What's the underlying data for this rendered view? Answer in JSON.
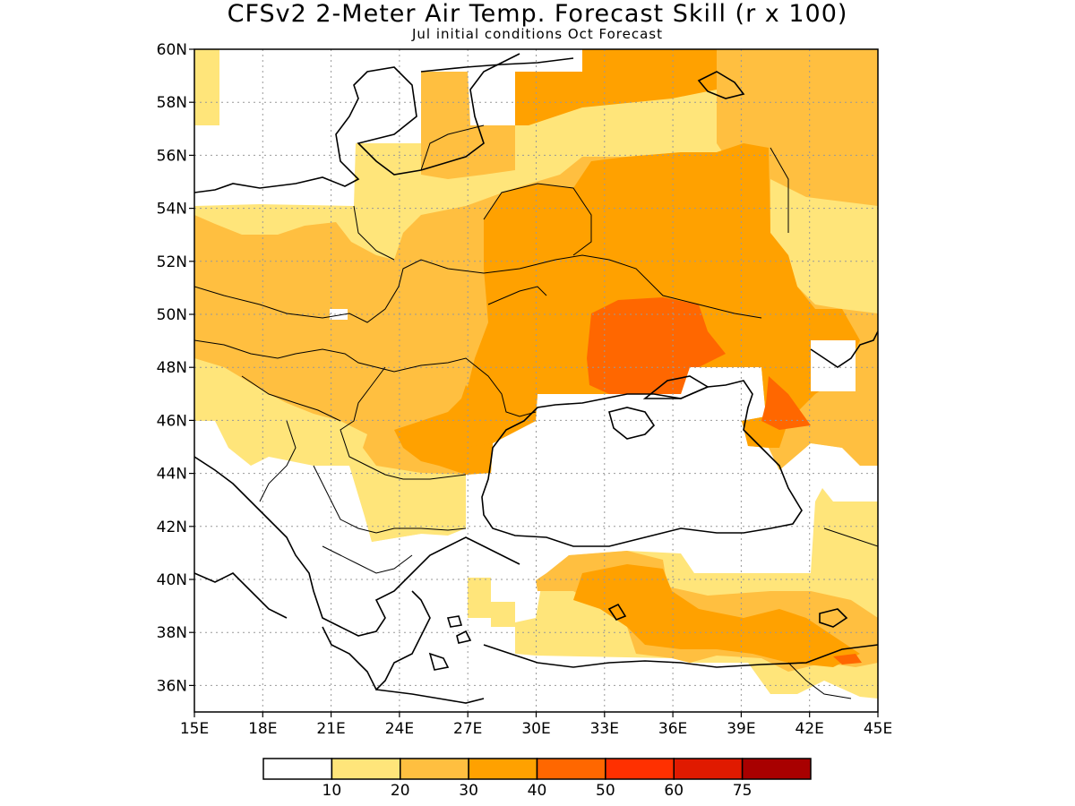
{
  "title": "CFSv2 2-Meter Air Temp. Forecast Skill (r x 100)",
  "subtitle": "Jul initial conditions  Oct Forecast",
  "map": {
    "lon_range": [
      15,
      45
    ],
    "lat_range": [
      35,
      60
    ],
    "grid": "dotted",
    "lat_ticks": [
      "36N",
      "38N",
      "40N",
      "42N",
      "44N",
      "46N",
      "48N",
      "50N",
      "52N",
      "54N",
      "56N",
      "58N",
      "60N"
    ],
    "lon_ticks": [
      "15E",
      "18E",
      "21E",
      "24E",
      "27E",
      "30E",
      "33E",
      "36E",
      "39E",
      "42E",
      "45E"
    ]
  },
  "colorbar": {
    "colors": [
      "#ffffff",
      "#ffe57a",
      "#ffbf40",
      "#ffa100",
      "#ff6700",
      "#ff3000",
      "#e01a00",
      "#a80000"
    ],
    "labels": [
      "10",
      "20",
      "30",
      "40",
      "50",
      "60",
      "75"
    ]
  },
  "legend_semantics": {
    "white": "below 10",
    "light-yellow": "10-20",
    "gold": "20-30",
    "orange": "30-40",
    "dark-orange": "40-50",
    "red-orange": "50-60",
    "red": "60-75",
    "dark-red": "above 75"
  }
}
